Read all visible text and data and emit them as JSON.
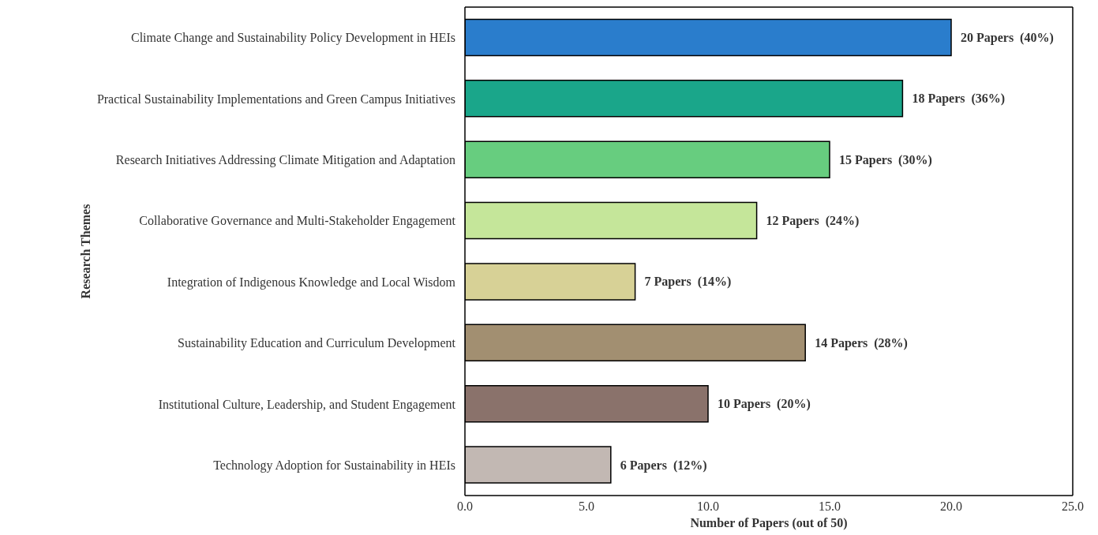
{
  "chart_data": {
    "type": "bar",
    "orientation": "horizontal",
    "xlabel": "Number of Papers (out of 50)",
    "ylabel": "Research Themes",
    "categories": [
      "Climate Change and Sustainability Policy Development in HEIs",
      "Practical Sustainability Implementations and Green Campus Initiatives",
      "Research Initiatives Addressing Climate Mitigation and Adaptation",
      "Collaborative Governance and Multi-Stakeholder Engagement",
      "Integration of Indigenous Knowledge and Local Wisdom",
      "Sustainability Education and Curriculum Development",
      "Institutional Culture, Leadership, and Student Engagement",
      "Technology Adoption for Sustainability in HEIs"
    ],
    "values": [
      20,
      18,
      15,
      12,
      7,
      14,
      10,
      6
    ],
    "colors": [
      "#2a7dcc",
      "#1aa68a",
      "#67cd7f",
      "#c5e69a",
      "#d7d196",
      "#a28f71",
      "#8a726b",
      "#c2b8b3"
    ],
    "value_labels": [
      "20 Papers  (40%)",
      "18 Papers  (36%)",
      "15 Papers  (30%)",
      "12 Papers  (24%)",
      "7 Papers  (14%)",
      "14 Papers  (28%)",
      "10 Papers  (20%)",
      "6 Papers  (12%)"
    ],
    "xlim": [
      0,
      25
    ],
    "xticks": [
      {
        "value": 0,
        "label": "0.0"
      },
      {
        "value": 5,
        "label": "5.0"
      },
      {
        "value": 10,
        "label": "10.0"
      },
      {
        "value": 15,
        "label": "15.0"
      },
      {
        "value": 20,
        "label": "20.0"
      },
      {
        "value": 25,
        "label": "25.0"
      }
    ],
    "grid": false,
    "legend": false
  }
}
